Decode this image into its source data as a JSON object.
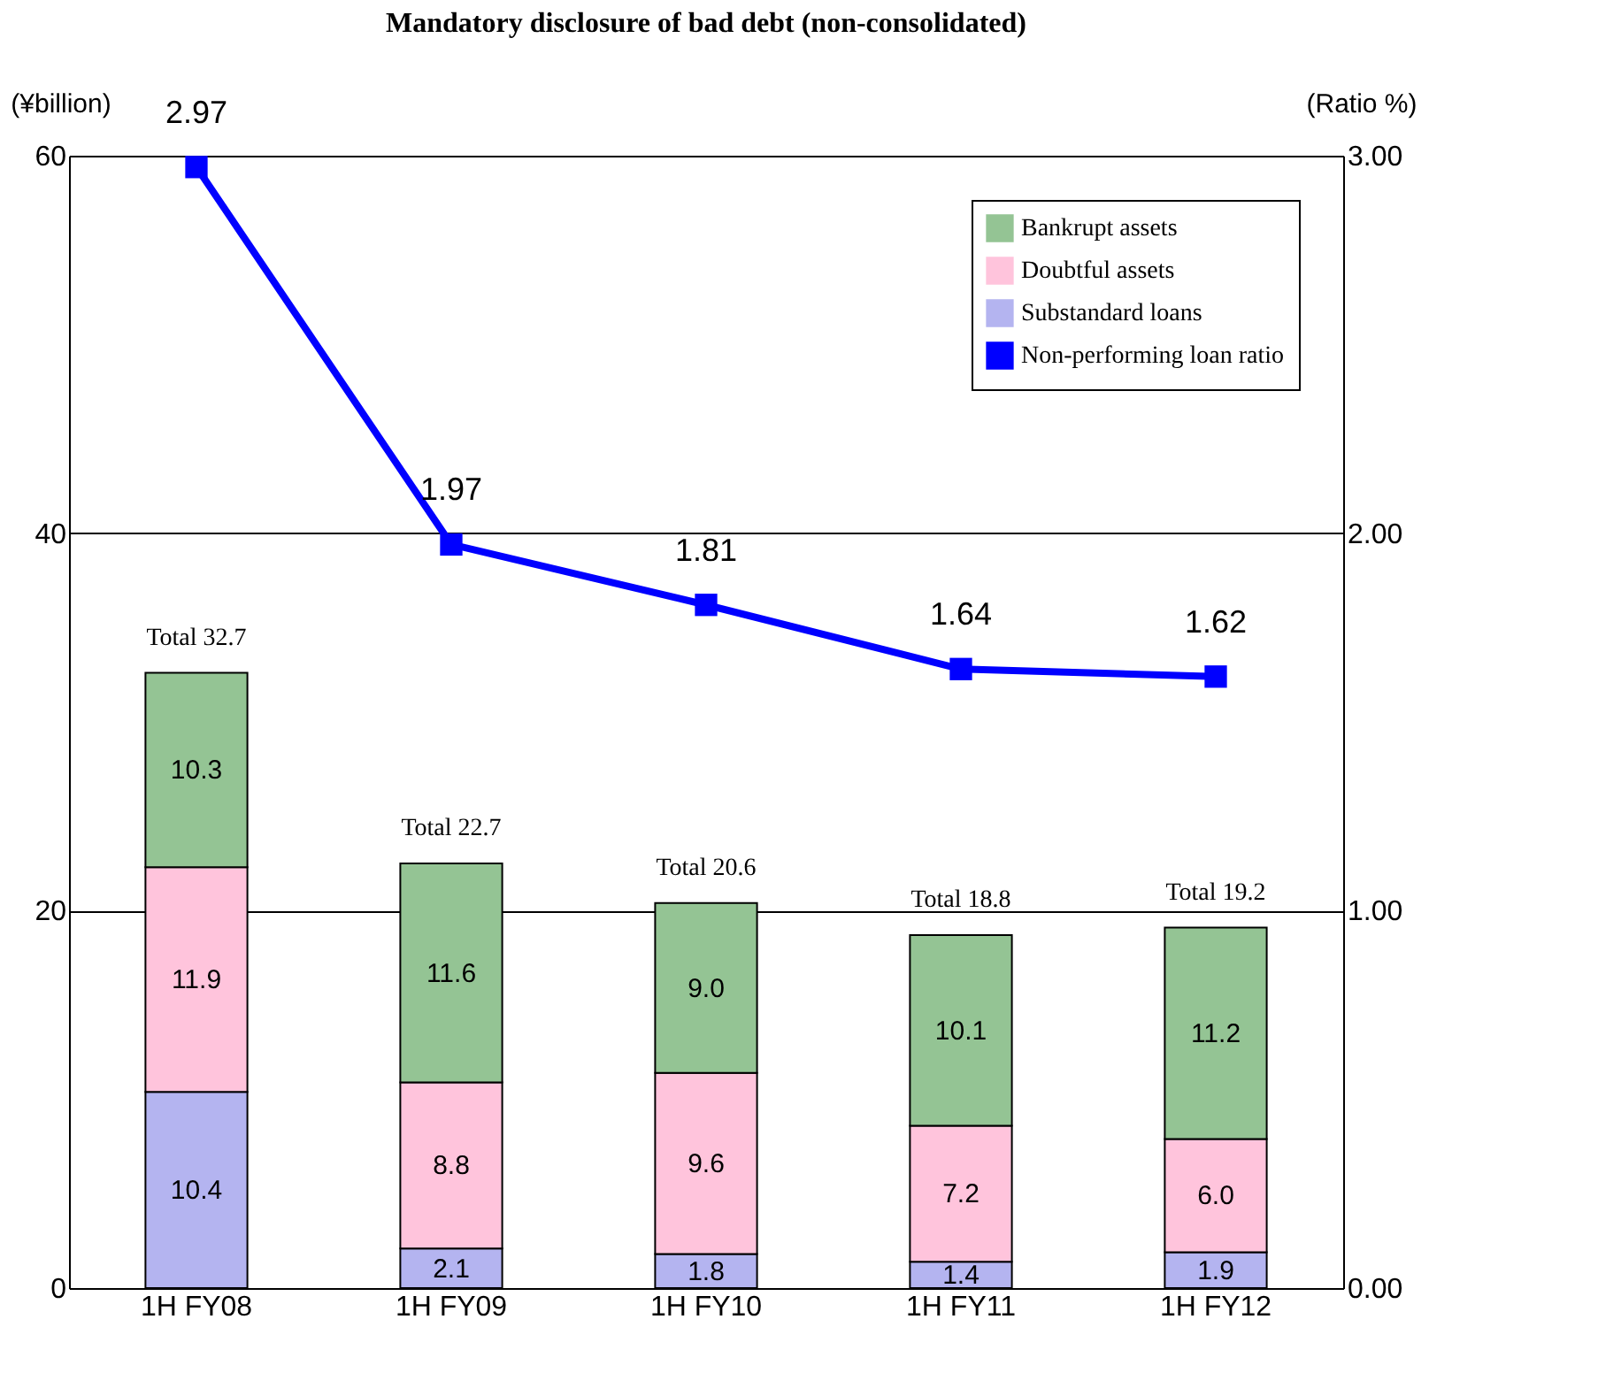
{
  "chart_data": {
    "type": "bar",
    "title": "Mandatory disclosure of bad debt (non-consolidated)",
    "ylabel": "(¥billion)",
    "y2label": "(Ratio %)",
    "categories": [
      "1H FY08",
      "1H FY09",
      "1H FY10",
      "1H FY11",
      "1H FY12"
    ],
    "stacked": true,
    "series": [
      {
        "name": "Substandard loans",
        "color": "#b4b4f0",
        "values": [
          10.4,
          2.1,
          1.8,
          1.4,
          1.9
        ]
      },
      {
        "name": "Doubtful assets",
        "color": "#ffc4dc",
        "values": [
          11.9,
          8.8,
          9.6,
          7.2,
          6.0
        ],
        "value_labels": [
          "11.9",
          "8.8",
          "9.6",
          "7.2",
          "6.0"
        ]
      },
      {
        "name": "Bankrupt assets",
        "color": "#94c494",
        "values": [
          10.3,
          11.6,
          9.0,
          10.1,
          11.2
        ],
        "value_labels": [
          "10.3",
          "11.6",
          "9.0",
          "10.1",
          "11.2"
        ]
      },
      {
        "name": "Non-performing loan ratio",
        "type": "line",
        "axis": "y2",
        "color": "#0000ff",
        "marker": "square",
        "line_style": "solid",
        "values": [
          2.97,
          1.97,
          1.81,
          1.64,
          1.62
        ]
      }
    ],
    "totals": [
      "Total 32.7",
      "Total 22.7",
      "Total 20.6",
      "Total 18.8",
      "Total 19.2"
    ],
    "data_labels": true,
    "ylim": [
      0,
      60
    ],
    "yticks": [
      0,
      20,
      40,
      60
    ],
    "y2lim": [
      0,
      3
    ],
    "y2ticks": [
      {
        "value": 0,
        "label": "0.00"
      },
      {
        "value": 1,
        "label": "1.00"
      },
      {
        "value": 2,
        "label": "2.00"
      },
      {
        "value": 3,
        "label": "3.00"
      }
    ],
    "grid": "y",
    "legend": "top right"
  }
}
